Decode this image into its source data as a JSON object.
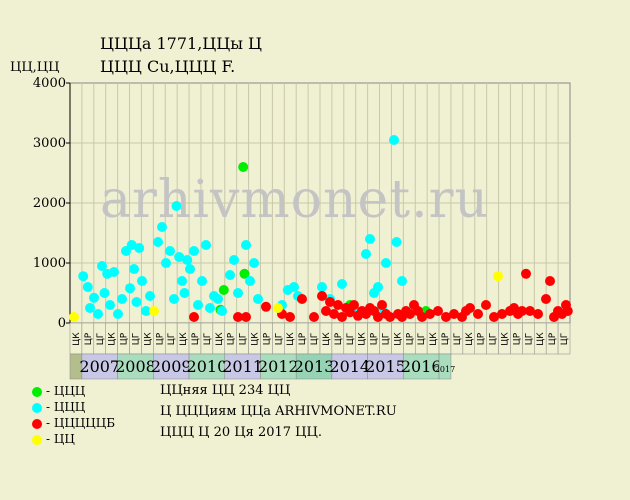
{
  "header": {
    "title_line1": "ЦЦЦа 1771,ЦЦы Ц",
    "title_line2": "ЦЦЦ Cu,ЦЦЦ F.",
    "y_unit": "ЦЦ,ЦЦ",
    "watermark": "arhivmonet.ru"
  },
  "legend": [
    {
      "label": "- ЦЦЦ",
      "color": "#00ee00"
    },
    {
      "label": "- ЦЦЦ",
      "color": "#00ffff"
    },
    {
      "label": "- ЦЦЦЦЦБ",
      "color": "#ff0000"
    },
    {
      "label": "- ЦЦ",
      "color": "#ffff00"
    }
  ],
  "info": {
    "line1": "ЦЦняя ЦЦ 234 ЦЦ",
    "line2": "Ц ЦЦЦиям ЦЦа ARHIVMONET.RU",
    "line3": "ЦЦЦ Ц 20 Ця 2017 ЦЦ."
  },
  "chart_data": {
    "type": "scatter",
    "ylim": [
      0,
      4000
    ],
    "y_ticks": [
      0,
      1000,
      2000,
      3000,
      4000
    ],
    "x_range": [
      "2006-10",
      "2017-03"
    ],
    "x_sub_labels": [
      "ЦК",
      "ЦР",
      "ЦГ",
      "ЦК",
      "ЦР",
      "ЦГ",
      "ЦК",
      "ЦР",
      "ЦГ",
      "ЦК",
      "ЦР",
      "ЦГ",
      "ЦК",
      "ЦР",
      "ЦГ",
      "ЦК",
      "ЦР",
      "ЦГ",
      "ЦК",
      "ЦР",
      "ЦГ",
      "ЦК",
      "ЦР",
      "ЦГ",
      "ЦК",
      "ЦР",
      "ЦГ",
      "ЦК",
      "ЦР",
      "ЦГ",
      "ЦК",
      "ЦР",
      "ЦГ",
      "ЦК",
      "ЦР",
      "ЦГ",
      "ЦК",
      "ЦР",
      "ЦГ",
      "ЦК",
      "ЦР",
      "ЦГ"
    ],
    "years": [
      {
        "label": "",
        "color": "#b4be8c"
      },
      {
        "label": "2007",
        "color": "#c8c8e6"
      },
      {
        "label": "2008",
        "color": "#aadcbe"
      },
      {
        "label": "2009",
        "color": "#c8c8e6"
      },
      {
        "label": "2010",
        "color": "#aadcbe"
      },
      {
        "label": "2011",
        "color": "#c8c8e6"
      },
      {
        "label": "2012",
        "color": "#aadcbe"
      },
      {
        "label": "2013",
        "color": "#96d2b4"
      },
      {
        "label": "2014",
        "color": "#c8c8e6"
      },
      {
        "label": "2015",
        "color": "#c8c8e6"
      },
      {
        "label": "2016",
        "color": "#aadcbe"
      },
      {
        "label": "2017",
        "color": "#aadcbe"
      }
    ],
    "series": [
      {
        "color": "#00ee00",
        "points": [
          [
            "2009-12-15",
            550
          ],
          [
            "2010-05-10",
            2600
          ],
          [
            "2010-05-20",
            820
          ],
          [
            "2012-08-01",
            300
          ],
          [
            "2014-03-01",
            200
          ],
          [
            "2009-11-20",
            220
          ]
        ]
      },
      {
        "color": "#00ffff",
        "points": [
          [
            "2007-01-10",
            780
          ],
          [
            "2007-02-15",
            600
          ],
          [
            "2007-03-01",
            250
          ],
          [
            "2007-04-01",
            420
          ],
          [
            "2007-05-01",
            150
          ],
          [
            "2007-06-01",
            950
          ],
          [
            "2007-06-20",
            500
          ],
          [
            "2007-07-10",
            820
          ],
          [
            "2007-08-01",
            300
          ],
          [
            "2007-09-01",
            850
          ],
          [
            "2007-10-01",
            150
          ],
          [
            "2007-11-01",
            400
          ],
          [
            "2007-12-01",
            1200
          ],
          [
            "2008-01-01",
            580
          ],
          [
            "2008-01-15",
            1300
          ],
          [
            "2008-02-01",
            900
          ],
          [
            "2008-02-20",
            350
          ],
          [
            "2008-03-10",
            1250
          ],
          [
            "2008-04-01",
            700
          ],
          [
            "2008-05-01",
            200
          ],
          [
            "2008-06-01",
            450
          ],
          [
            "2008-08-01",
            1350
          ],
          [
            "2008-09-01",
            1600
          ],
          [
            "2008-10-01",
            1000
          ],
          [
            "2008-11-01",
            1200
          ],
          [
            "2008-12-01",
            400
          ],
          [
            "2008-12-20",
            1950
          ],
          [
            "2009-01-10",
            1100
          ],
          [
            "2009-02-01",
            700
          ],
          [
            "2009-02-20",
            500
          ],
          [
            "2009-03-10",
            1050
          ],
          [
            "2009-04-01",
            900
          ],
          [
            "2009-05-01",
            1200
          ],
          [
            "2009-06-01",
            300
          ],
          [
            "2009-07-01",
            700
          ],
          [
            "2009-08-01",
            1300
          ],
          [
            "2009-09-01",
            250
          ],
          [
            "2009-10-01",
            450
          ],
          [
            "2009-11-01",
            400
          ],
          [
            "2009-12-01",
            200
          ],
          [
            "2010-02-01",
            800
          ],
          [
            "2010-03-01",
            1050
          ],
          [
            "2010-04-01",
            500
          ],
          [
            "2010-06-01",
            1300
          ],
          [
            "2010-07-01",
            700
          ],
          [
            "2010-08-01",
            1000
          ],
          [
            "2010-09-01",
            400
          ],
          [
            "2011-03-01",
            300
          ],
          [
            "2011-04-15",
            550
          ],
          [
            "2011-06-01",
            600
          ],
          [
            "2011-07-01",
            450
          ],
          [
            "2012-01-01",
            600
          ],
          [
            "2012-03-01",
            400
          ],
          [
            "2012-06-01",
            650
          ],
          [
            "2012-09-01",
            250
          ],
          [
            "2012-12-01",
            1150
          ],
          [
            "2013-01-01",
            1400
          ],
          [
            "2013-02-01",
            500
          ],
          [
            "2013-03-01",
            600
          ],
          [
            "2013-05-01",
            1000
          ],
          [
            "2013-07-01",
            3050
          ],
          [
            "2013-07-20",
            1350
          ],
          [
            "2013-09-01",
            700
          ],
          [
            "2013-04-01",
            250
          ]
        ]
      },
      {
        "color": "#ff0000",
        "points": [
          [
            "2009-05-01",
            100
          ],
          [
            "2010-04-01",
            100
          ],
          [
            "2010-06-01",
            100
          ],
          [
            "2010-11-01",
            270
          ],
          [
            "2011-03-01",
            150
          ],
          [
            "2011-05-01",
            100
          ],
          [
            "2011-08-01",
            400
          ],
          [
            "2011-11-01",
            100
          ],
          [
            "2012-01-01",
            450
          ],
          [
            "2012-02-01",
            200
          ],
          [
            "2012-03-01",
            350
          ],
          [
            "2012-04-01",
            150
          ],
          [
            "2012-05-01",
            300
          ],
          [
            "2012-06-01",
            100
          ],
          [
            "2012-07-01",
            250
          ],
          [
            "2012-08-01",
            180
          ],
          [
            "2012-09-01",
            300
          ],
          [
            "2012-10-01",
            120
          ],
          [
            "2012-11-01",
            200
          ],
          [
            "2012-12-01",
            150
          ],
          [
            "2013-01-01",
            250
          ],
          [
            "2013-02-01",
            200
          ],
          [
            "2013-03-01",
            100
          ],
          [
            "2013-04-01",
            300
          ],
          [
            "2013-05-01",
            150
          ],
          [
            "2013-06-01",
            100
          ],
          [
            "2013-08-01",
            150
          ],
          [
            "2013-09-01",
            100
          ],
          [
            "2013-10-01",
            200
          ],
          [
            "2013-11-01",
            150
          ],
          [
            "2013-12-01",
            300
          ],
          [
            "2014-01-01",
            200
          ],
          [
            "2014-02-01",
            100
          ],
          [
            "2014-04-01",
            150
          ],
          [
            "2014-06-01",
            200
          ],
          [
            "2014-08-01",
            100
          ],
          [
            "2014-10-01",
            150
          ],
          [
            "2014-12-01",
            100
          ],
          [
            "2015-01-01",
            200
          ],
          [
            "2015-02-01",
            250
          ],
          [
            "2015-04-01",
            150
          ],
          [
            "2015-06-01",
            300
          ],
          [
            "2015-08-01",
            100
          ],
          [
            "2015-10-01",
            150
          ],
          [
            "2015-12-01",
            200
          ],
          [
            "2016-01-01",
            250
          ],
          [
            "2016-02-01",
            150
          ],
          [
            "2016-03-01",
            200
          ],
          [
            "2016-04-01",
            820
          ],
          [
            "2016-05-01",
            200
          ],
          [
            "2016-07-01",
            150
          ],
          [
            "2016-09-01",
            400
          ],
          [
            "2016-10-01",
            700
          ],
          [
            "2016-12-01",
            200
          ],
          [
            "2017-01-01",
            150
          ],
          [
            "2017-02-01",
            300
          ],
          [
            "2016-11-01",
            100
          ],
          [
            "2017-02-15",
            200
          ]
        ]
      },
      {
        "color": "#ffff00",
        "points": [
          [
            "2006-11-01",
            100
          ],
          [
            "2008-07-01",
            200
          ],
          [
            "2011-02-01",
            250
          ],
          [
            "2015-09-01",
            780
          ]
        ]
      }
    ]
  }
}
